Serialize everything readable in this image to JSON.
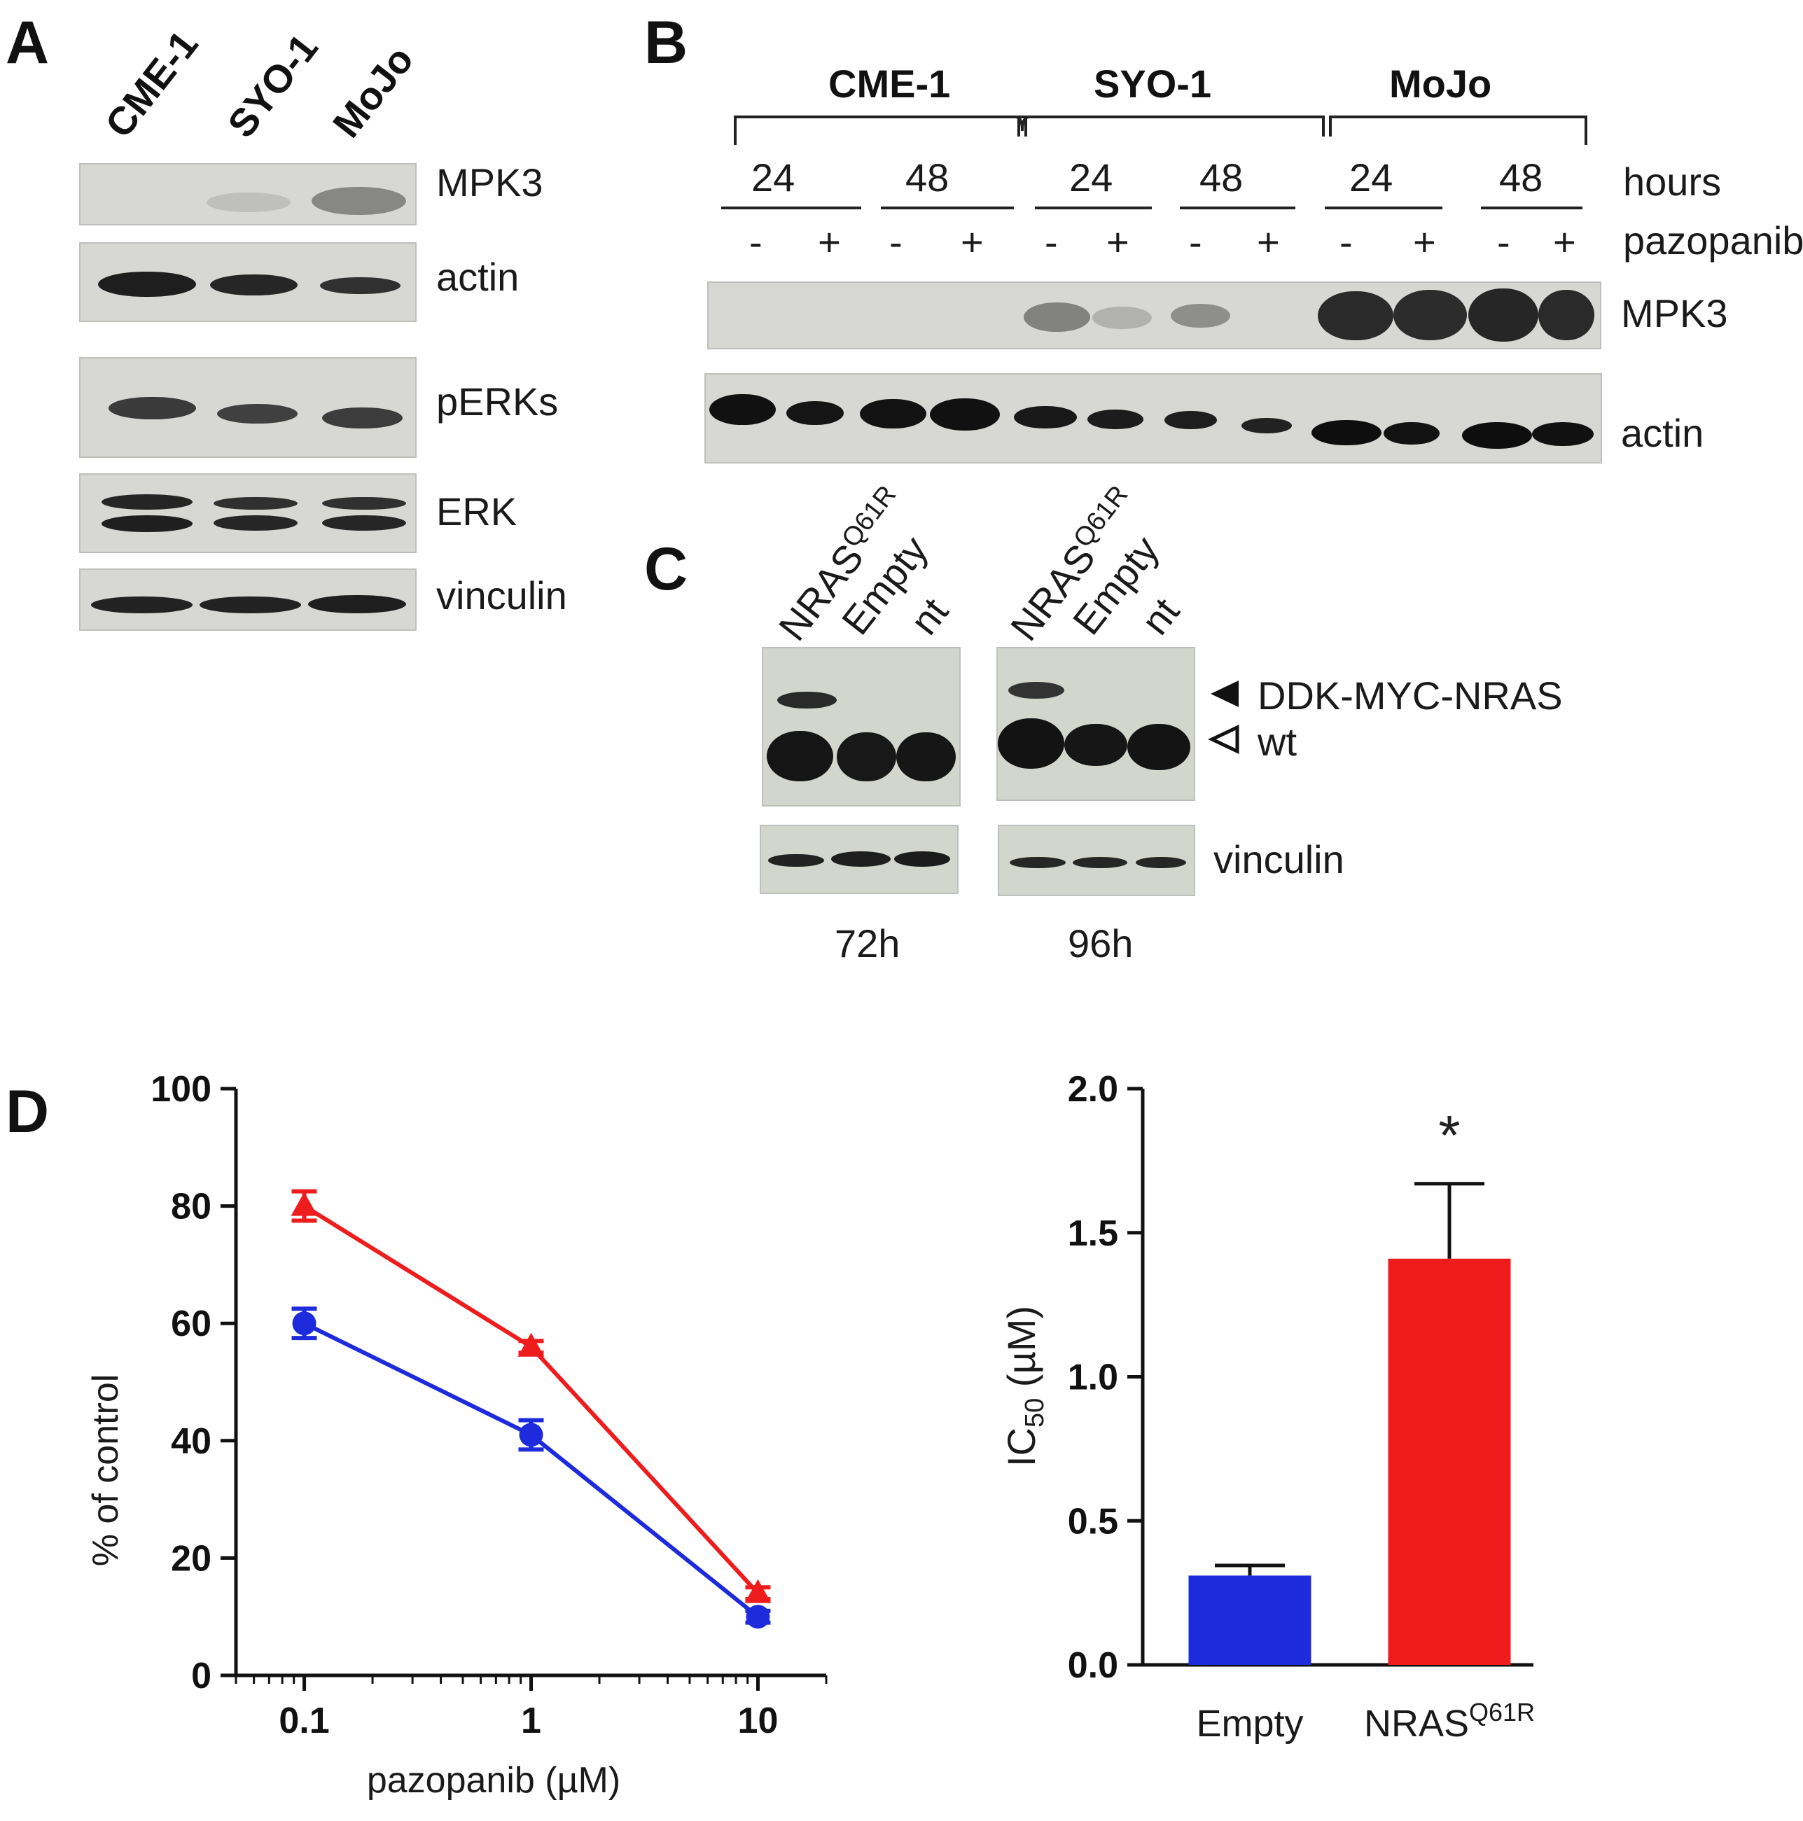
{
  "panels": {
    "a": "A",
    "b": "B",
    "c": "C",
    "d": "D"
  },
  "panel_a": {
    "lanes": [
      "CME-1",
      "SYO-1",
      "MoJo"
    ],
    "blots": [
      "MPK3",
      "actin",
      "pERKs",
      "ERK",
      "vinculin"
    ]
  },
  "panel_b": {
    "groups": [
      "CME-1",
      "SYO-1",
      "MoJo"
    ],
    "times": [
      "24",
      "48",
      "24",
      "48",
      "24",
      "48"
    ],
    "time_label": "hours",
    "treatments": [
      "-",
      "+",
      "-",
      "+",
      "-",
      "+",
      "-",
      "+",
      "-",
      "+",
      "-",
      "+"
    ],
    "treatment_label": "pazopanib",
    "blots": [
      "MPK3",
      "actin"
    ]
  },
  "panel_c": {
    "lane_main": [
      "NRAS",
      "NRAS"
    ],
    "lane_sup": [
      "Q61R",
      "Q61R"
    ],
    "lanes_other": [
      "Empty",
      "nt",
      "Empty",
      "nt"
    ],
    "band_labels": [
      "DDK-MYC-NRAS",
      "wt"
    ],
    "loading_label": "vinculin",
    "timepoints": [
      "72h",
      "96h"
    ]
  },
  "chart_data": [
    {
      "type": "line",
      "xlabel": "pazopanib (µM)",
      "ylabel": "% of control",
      "xscale": "log",
      "xlim": [
        0.05,
        20
      ],
      "ylim": [
        0,
        100
      ],
      "xticks": [
        "0.1",
        "1",
        "10"
      ],
      "yticks": [
        "0",
        "20",
        "40",
        "60",
        "80",
        "100"
      ],
      "x": [
        0.1,
        1,
        10
      ],
      "series": [
        {
          "values": [
            80,
            56,
            14
          ],
          "error": [
            2.5,
            1.0,
            1.0
          ],
          "color": "#ee1c1c",
          "marker": "triangle"
        },
        {
          "values": [
            60,
            41,
            10
          ],
          "error": [
            2.5,
            2.5,
            1.0
          ],
          "color": "#1d2bdc",
          "marker": "circle"
        }
      ]
    },
    {
      "type": "bar",
      "ylabel_main": "IC",
      "ylabel_sub": "50",
      "ylabel_tail": " (µM)",
      "ylim": [
        0,
        2.0
      ],
      "yticks": [
        "0.0",
        "0.5",
        "1.0",
        "1.5",
        "2.0"
      ],
      "categories": [
        "Empty",
        "NRAS"
      ],
      "category_sup": [
        "",
        "Q61R"
      ],
      "values": [
        0.31,
        1.41
      ],
      "error": [
        0.035,
        0.26
      ],
      "colors": [
        "#1d2bdc",
        "#ee1c1c"
      ],
      "annotations": [
        "",
        "*"
      ]
    }
  ]
}
